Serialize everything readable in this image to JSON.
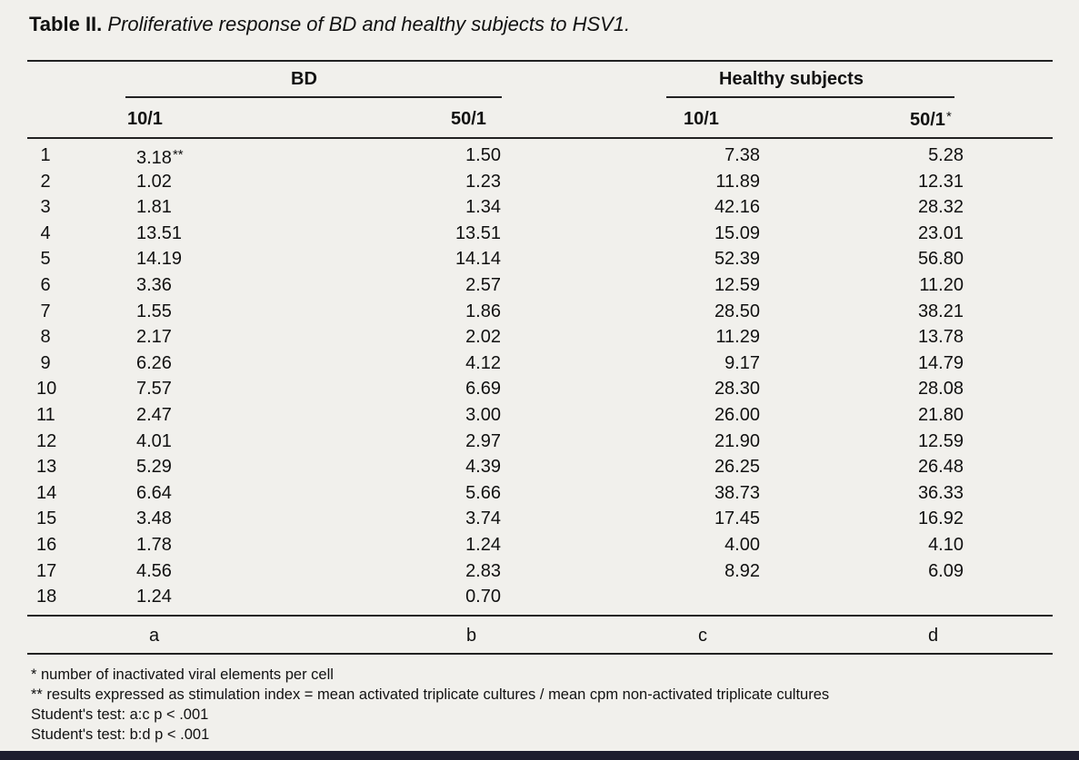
{
  "caption": {
    "label": "Table II.",
    "title": "Proliferative response of BD and healthy subjects to HSV1."
  },
  "headers": {
    "group_bd": "BD",
    "group_healthy": "Healthy subjects",
    "col_a": "10/1",
    "col_b": "50/1",
    "col_c": "10/1",
    "col_d": "50/1",
    "col_d_mark": "*"
  },
  "rows": [
    {
      "n": "1",
      "a": "3.18",
      "a_mark": "**",
      "b": "1.50",
      "c": "7.38",
      "d": "5.28"
    },
    {
      "n": "2",
      "a": "1.02",
      "b": "1.23",
      "c": "11.89",
      "d": "12.31"
    },
    {
      "n": "3",
      "a": "1.81",
      "b": "1.34",
      "c": "42.16",
      "d": "28.32"
    },
    {
      "n": "4",
      "a": "13.51",
      "b": "13.51",
      "c": "15.09",
      "d": "23.01"
    },
    {
      "n": "5",
      "a": "14.19",
      "b": "14.14",
      "c": "52.39",
      "d": "56.80"
    },
    {
      "n": "6",
      "a": "3.36",
      "b": "2.57",
      "c": "12.59",
      "d": "11.20"
    },
    {
      "n": "7",
      "a": "1.55",
      "b": "1.86",
      "c": "28.50",
      "d": "38.21"
    },
    {
      "n": "8",
      "a": "2.17",
      "b": "2.02",
      "c": "11.29",
      "d": "13.78"
    },
    {
      "n": "9",
      "a": "6.26",
      "b": "4.12",
      "c": "9.17",
      "d": "14.79"
    },
    {
      "n": "10",
      "a": "7.57",
      "b": "6.69",
      "c": "28.30",
      "d": "28.08"
    },
    {
      "n": "11",
      "a": "2.47",
      "b": "3.00",
      "c": "26.00",
      "d": "21.80"
    },
    {
      "n": "12",
      "a": "4.01",
      "b": "2.97",
      "c": "21.90",
      "d": "12.59"
    },
    {
      "n": "13",
      "a": "5.29",
      "b": "4.39",
      "c": "26.25",
      "d": "26.48"
    },
    {
      "n": "14",
      "a": "6.64",
      "b": "5.66",
      "c": "38.73",
      "d": "36.33"
    },
    {
      "n": "15",
      "a": "3.48",
      "b": "3.74",
      "c": "17.45",
      "d": "16.92"
    },
    {
      "n": "16",
      "a": "1.78",
      "b": "1.24",
      "c": "4.00",
      "d": "4.10"
    },
    {
      "n": "17",
      "a": "4.56",
      "b": "2.83",
      "c": "8.92",
      "d": "6.09"
    },
    {
      "n": "18",
      "a": "1.24",
      "b": "0.70",
      "c": "",
      "d": ""
    }
  ],
  "column_letters": {
    "a": "a",
    "b": "b",
    "c": "c",
    "d": "d"
  },
  "footnotes": [
    "* number of inactivated viral elements per cell",
    "** results expressed as stimulation index = mean activated triplicate cultures / mean cpm non-activated triplicate cultures",
    "Student's test: a:c p < .001",
    "Student's test: b:d p < .001"
  ]
}
